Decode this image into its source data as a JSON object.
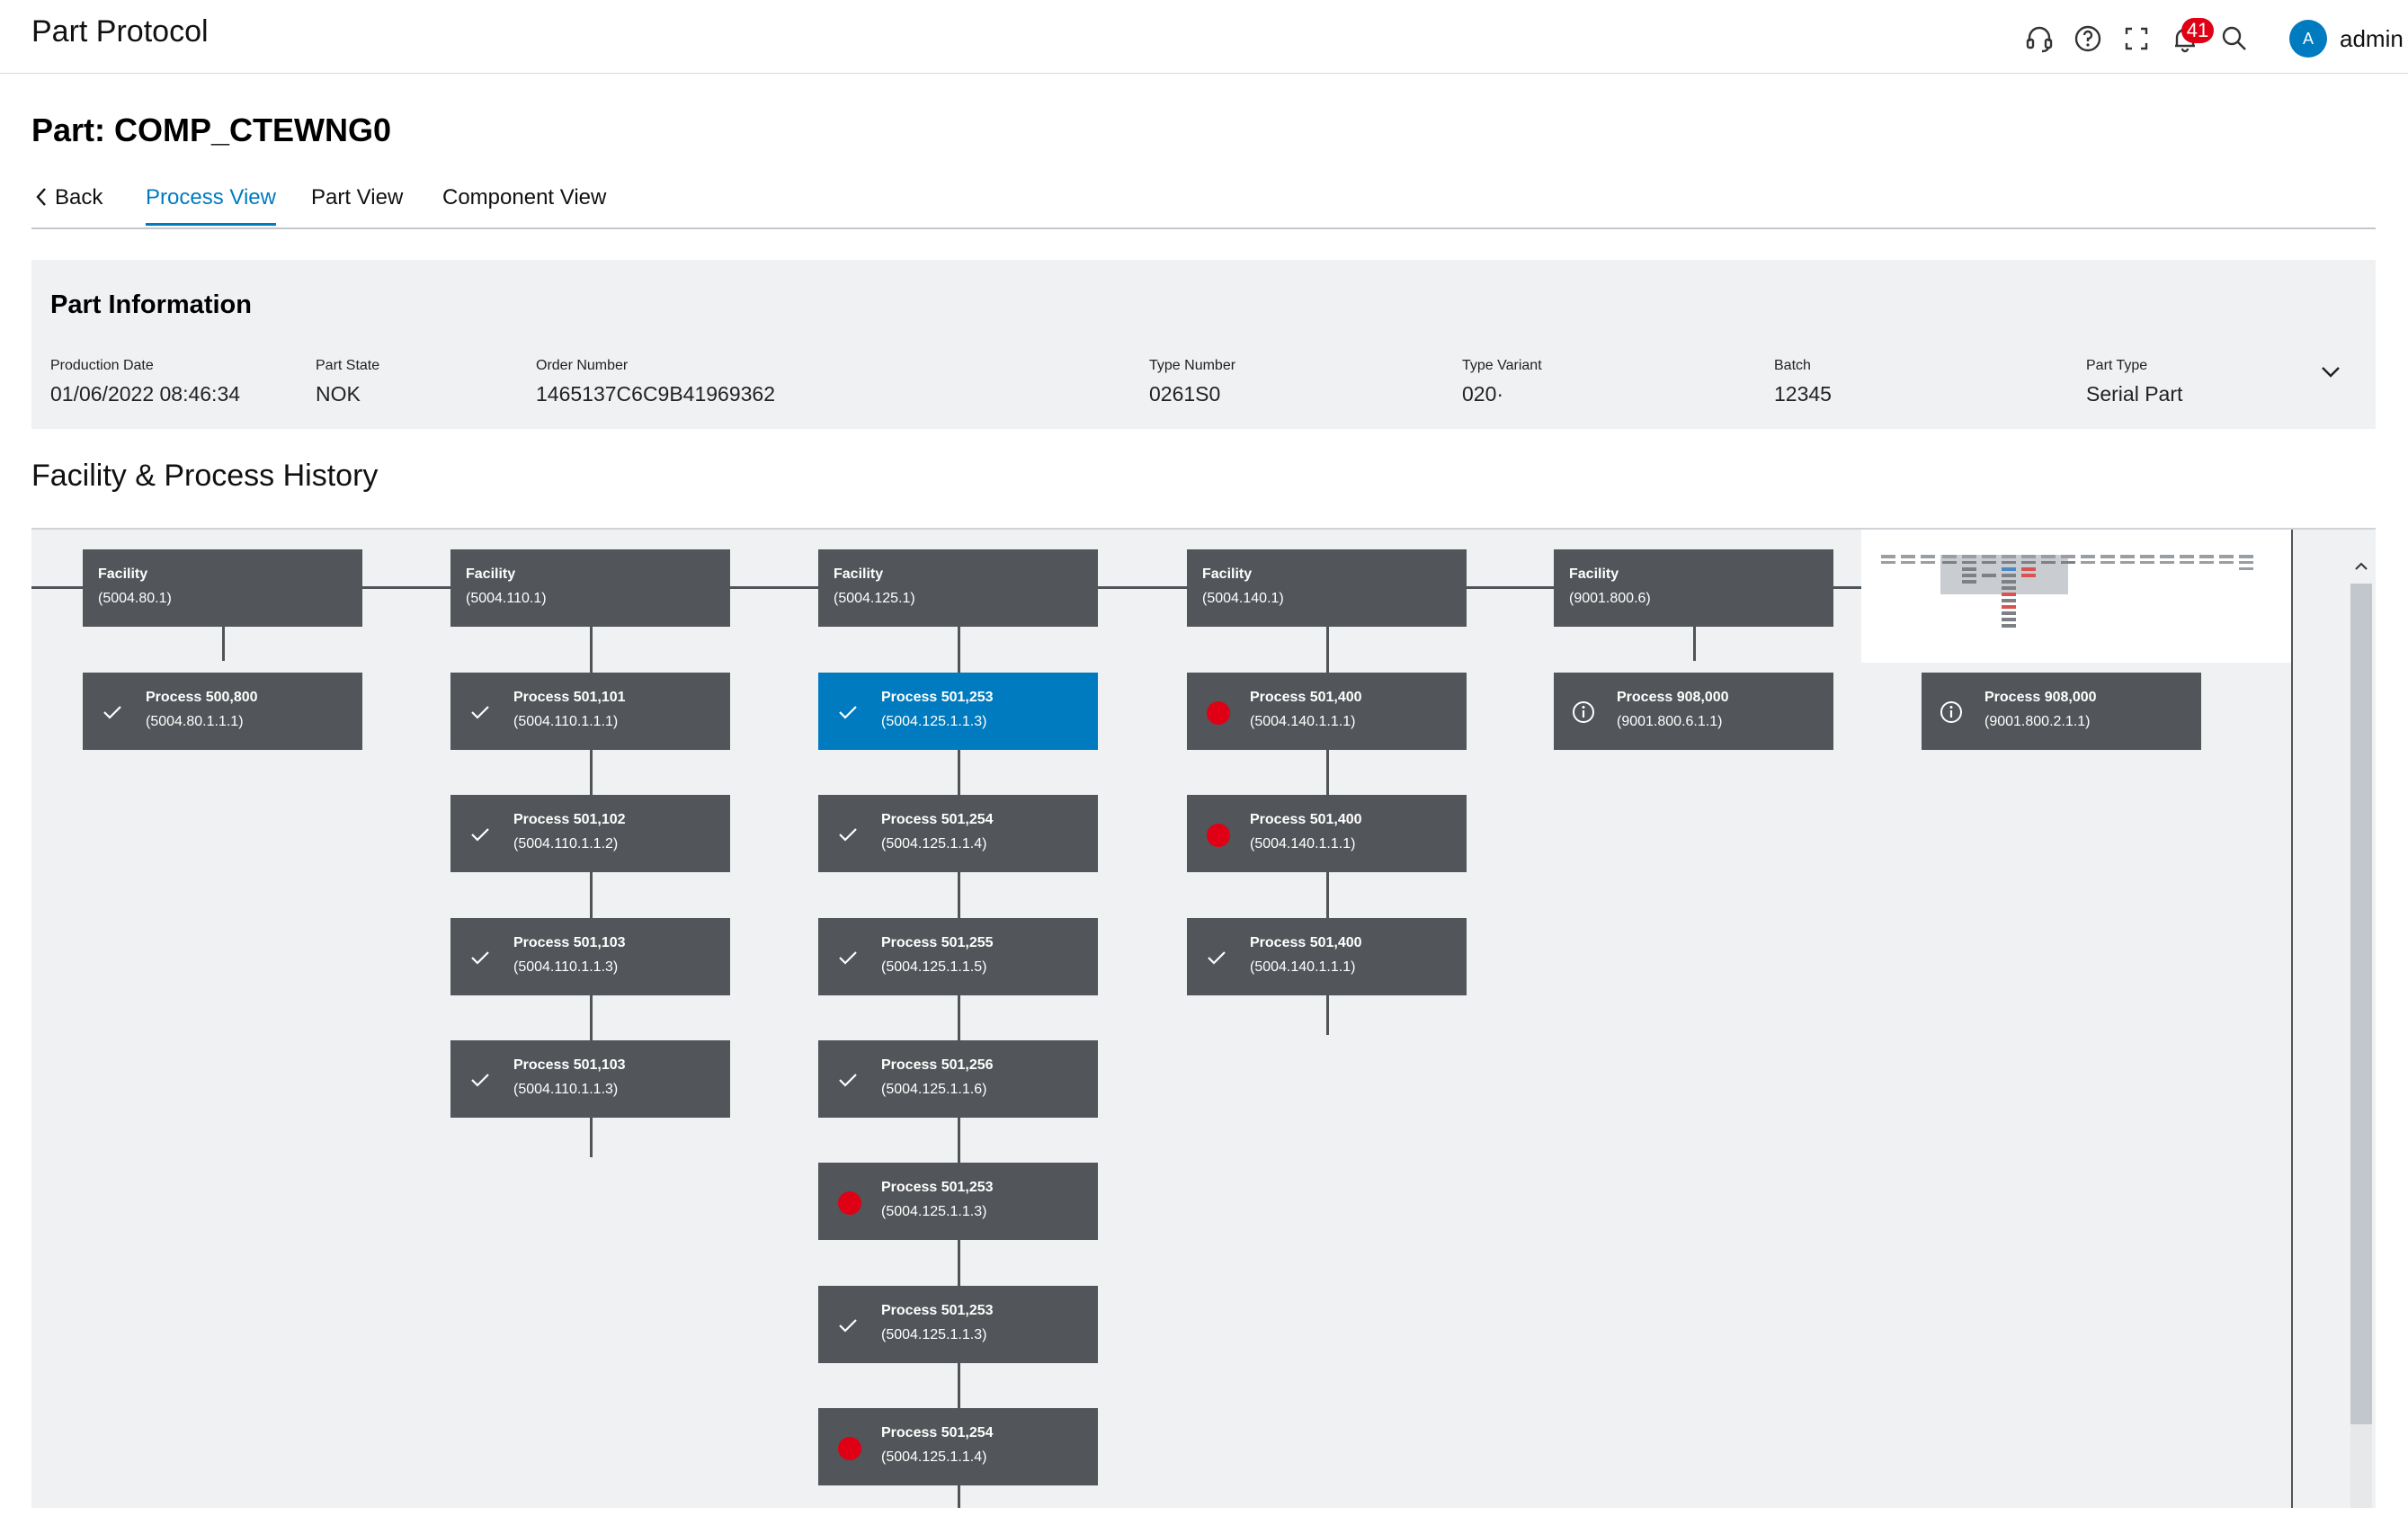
{
  "header": {
    "app_title": "Part Protocol",
    "icons": [
      "headset-icon",
      "help-icon",
      "fullscreen-icon",
      "bell-icon",
      "search-icon"
    ],
    "notification_count": "41",
    "user": {
      "initial": "A",
      "name": "admin"
    }
  },
  "page": {
    "title": "Part: COMP_CTEWNG0",
    "tabs": {
      "back": "Back",
      "process_view": "Process View",
      "part_view": "Part View",
      "component_view": "Component View",
      "active": "Process View"
    }
  },
  "part_info": {
    "title": "Part Information",
    "fields": [
      {
        "label": "Production Date",
        "value": "01/06/2022 08:46:34"
      },
      {
        "label": "Part State",
        "value": "NOK"
      },
      {
        "label": "Order Number",
        "value": "1465137C6C9B41969362"
      },
      {
        "label": "Type Number",
        "value": "0261S0"
      },
      {
        "label": "Type Variant",
        "value": "020·"
      },
      {
        "label": "Batch",
        "value": "12345"
      },
      {
        "label": "Part Type",
        "value": "Serial Part"
      }
    ]
  },
  "history": {
    "title": "Facility & Process History",
    "columns": [
      {
        "facility": {
          "label": "Facility",
          "id": "(5004.80.1)"
        },
        "processes": [
          {
            "name": "Process 500,800",
            "id": "(5004.80.1.1.1)",
            "status": "ok"
          }
        ]
      },
      {
        "facility": {
          "label": "Facility",
          "id": "(5004.110.1)"
        },
        "processes": [
          {
            "name": "Process 501,101",
            "id": "(5004.110.1.1.1)",
            "status": "ok"
          },
          {
            "name": "Process 501,102",
            "id": "(5004.110.1.1.2)",
            "status": "ok"
          },
          {
            "name": "Process 501,103",
            "id": "(5004.110.1.1.3)",
            "status": "ok"
          },
          {
            "name": "Process 501,103",
            "id": "(5004.110.1.1.3)",
            "status": "ok"
          }
        ]
      },
      {
        "facility": {
          "label": "Facility",
          "id": "(5004.125.1)"
        },
        "processes": [
          {
            "name": "Process 501,253",
            "id": "(5004.125.1.1.3)",
            "status": "ok",
            "selected": true
          },
          {
            "name": "Process 501,254",
            "id": "(5004.125.1.1.4)",
            "status": "ok"
          },
          {
            "name": "Process 501,255",
            "id": "(5004.125.1.1.5)",
            "status": "ok"
          },
          {
            "name": "Process 501,256",
            "id": "(5004.125.1.1.6)",
            "status": "ok"
          },
          {
            "name": "Process 501,253",
            "id": "(5004.125.1.1.3)",
            "status": "error"
          },
          {
            "name": "Process 501,253",
            "id": "(5004.125.1.1.3)",
            "status": "ok"
          },
          {
            "name": "Process 501,254",
            "id": "(5004.125.1.1.4)",
            "status": "error"
          }
        ]
      },
      {
        "facility": {
          "label": "Facility",
          "id": "(5004.140.1)"
        },
        "processes": [
          {
            "name": "Process 501,400",
            "id": "(5004.140.1.1.1)",
            "status": "error"
          },
          {
            "name": "Process 501,400",
            "id": "(5004.140.1.1.1)",
            "status": "error"
          },
          {
            "name": "Process 501,400",
            "id": "(5004.140.1.1.1)",
            "status": "ok"
          }
        ]
      },
      {
        "facility": {
          "label": "Facility",
          "id": "(9001.800.6)"
        },
        "processes": [
          {
            "name": "Process 908,000",
            "id": "(9001.800.6.1.1)",
            "status": "info"
          }
        ]
      },
      {
        "facility": null,
        "processes": [
          {
            "name": "Process 908,000",
            "id": "(9001.800.2.1.1)",
            "status": "info"
          }
        ]
      }
    ]
  },
  "colors": {
    "accent": "#007bc0",
    "node_bg": "#525559",
    "error": "#e00015",
    "panel_bg": "#eff1f2"
  }
}
